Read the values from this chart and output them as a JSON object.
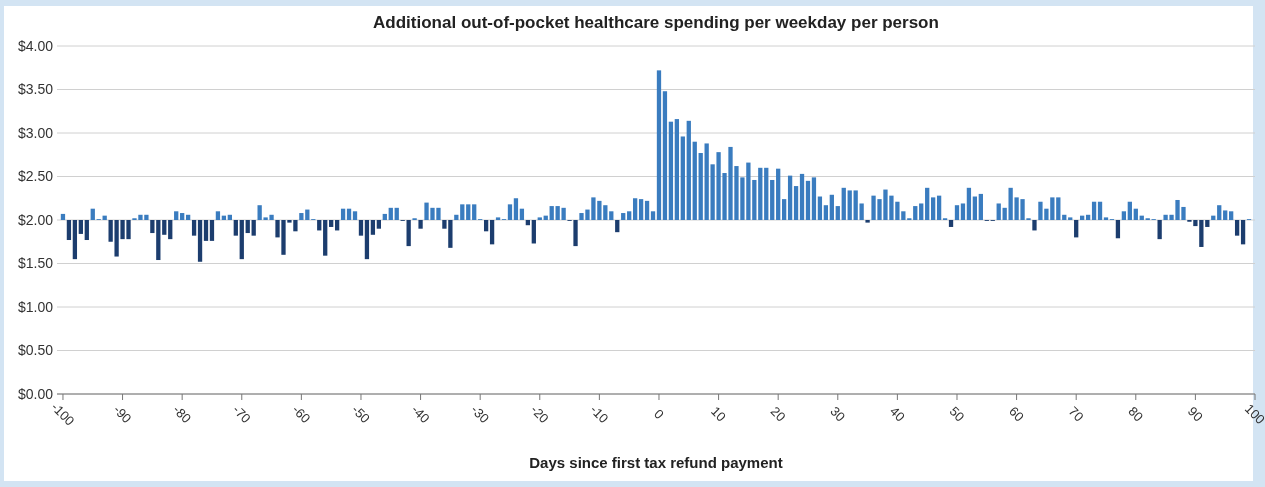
{
  "chart_data": {
    "type": "bar",
    "title": "Additional out-of-pocket healthcare spending per weekday per person",
    "xlabel": "Days since first tax refund payment",
    "x": [
      -100,
      -99,
      -98,
      -97,
      -96,
      -95,
      -94,
      -93,
      -92,
      -91,
      -90,
      -89,
      -88,
      -87,
      -86,
      -85,
      -84,
      -83,
      -82,
      -81,
      -80,
      -79,
      -78,
      -77,
      -76,
      -75,
      -74,
      -73,
      -72,
      -71,
      -70,
      -69,
      -68,
      -67,
      -66,
      -65,
      -64,
      -63,
      -62,
      -61,
      -60,
      -59,
      -58,
      -57,
      -56,
      -55,
      -54,
      -53,
      -52,
      -51,
      -50,
      -49,
      -48,
      -47,
      -46,
      -45,
      -44,
      -43,
      -42,
      -41,
      -40,
      -39,
      -38,
      -37,
      -36,
      -35,
      -34,
      -33,
      -32,
      -31,
      -30,
      -29,
      -28,
      -27,
      -26,
      -25,
      -24,
      -23,
      -22,
      -21,
      -20,
      -19,
      -18,
      -17,
      -16,
      -15,
      -14,
      -13,
      -12,
      -11,
      -10,
      -9,
      -8,
      -7,
      -6,
      -5,
      -4,
      -3,
      -2,
      -1,
      0,
      1,
      2,
      3,
      4,
      5,
      6,
      7,
      8,
      9,
      10,
      11,
      12,
      13,
      14,
      15,
      16,
      17,
      18,
      19,
      20,
      21,
      22,
      23,
      24,
      25,
      26,
      27,
      28,
      29,
      30,
      31,
      32,
      33,
      34,
      35,
      36,
      37,
      38,
      39,
      40,
      41,
      42,
      43,
      44,
      45,
      46,
      47,
      48,
      49,
      50,
      51,
      52,
      53,
      54,
      55,
      56,
      57,
      58,
      59,
      60,
      61,
      62,
      63,
      64,
      65,
      66,
      67,
      68,
      69,
      70,
      71,
      72,
      73,
      74,
      75,
      76,
      77,
      78,
      79,
      80,
      81,
      82,
      83,
      84,
      85,
      86,
      87,
      88,
      89,
      90,
      91,
      92,
      93,
      94,
      95,
      96,
      97,
      98,
      99
    ],
    "values": [
      0.07,
      -0.23,
      -0.45,
      -0.16,
      -0.23,
      0.13,
      0.01,
      0.05,
      -0.25,
      -0.42,
      -0.22,
      -0.22,
      0.02,
      0.06,
      0.06,
      -0.15,
      -0.46,
      -0.17,
      -0.22,
      0.1,
      0.08,
      0.06,
      -0.18,
      -0.48,
      -0.24,
      -0.24,
      0.1,
      0.05,
      0.06,
      -0.18,
      -0.45,
      -0.15,
      -0.18,
      0.17,
      0.03,
      0.06,
      -0.2,
      -0.4,
      -0.03,
      -0.13,
      0.08,
      0.12,
      0.01,
      -0.12,
      -0.41,
      -0.08,
      -0.12,
      0.13,
      0.13,
      0.1,
      -0.18,
      -0.45,
      -0.17,
      -0.1,
      0.07,
      0.14,
      0.14,
      -0.01,
      -0.3,
      0.02,
      -0.1,
      0.2,
      0.14,
      0.14,
      -0.1,
      -0.32,
      0.06,
      0.18,
      0.18,
      0.18,
      0.01,
      -0.13,
      -0.28,
      0.03,
      0.01,
      0.18,
      0.25,
      0.13,
      -0.06,
      -0.27,
      0.03,
      0.05,
      0.16,
      0.16,
      0.14,
      -0.01,
      -0.3,
      0.08,
      0.12,
      0.26,
      0.22,
      0.17,
      0.1,
      -0.14,
      0.08,
      0.1,
      0.25,
      0.24,
      0.22,
      0.1,
      1.72,
      1.48,
      1.13,
      1.16,
      0.96,
      1.14,
      0.9,
      0.77,
      0.88,
      0.64,
      0.78,
      0.54,
      0.84,
      0.62,
      0.49,
      0.66,
      0.46,
      0.6,
      0.6,
      0.46,
      0.59,
      0.24,
      0.51,
      0.39,
      0.53,
      0.45,
      0.49,
      0.27,
      0.17,
      0.29,
      0.16,
      0.37,
      0.34,
      0.34,
      0.19,
      -0.03,
      0.28,
      0.24,
      0.35,
      0.28,
      0.21,
      0.1,
      0.02,
      0.16,
      0.19,
      0.37,
      0.26,
      0.28,
      0.02,
      -0.08,
      0.17,
      0.19,
      0.37,
      0.27,
      0.3,
      -0.01,
      -0.01,
      0.19,
      0.14,
      0.37,
      0.26,
      0.24,
      0.02,
      -0.12,
      0.21,
      0.13,
      0.26,
      0.26,
      0.06,
      0.03,
      -0.2,
      0.05,
      0.06,
      0.21,
      0.21,
      0.03,
      0.01,
      -0.21,
      0.1,
      0.21,
      0.13,
      0.05,
      0.02,
      0.01,
      -0.22,
      0.06,
      0.06,
      0.23,
      0.15,
      -0.02,
      -0.07,
      -0.31,
      -0.08,
      0.05,
      0.17,
      0.11,
      0.1,
      -0.18,
      -0.28,
      0.01
    ],
    "base": [
      2,
      2,
      2,
      2,
      2,
      2,
      2,
      2,
      2,
      2,
      2,
      2,
      2,
      2,
      2,
      2,
      2,
      2,
      2,
      2,
      2,
      2,
      2,
      2,
      2,
      2,
      2,
      2,
      2,
      2,
      2,
      2,
      2,
      2,
      2,
      2,
      2,
      2,
      2,
      2,
      2,
      2,
      2,
      2,
      2,
      2,
      2,
      2,
      2,
      2,
      2,
      2,
      2,
      2,
      2,
      2,
      2,
      2,
      2,
      2,
      2,
      2,
      2,
      2,
      2,
      2,
      2,
      2,
      2,
      2,
      2,
      2,
      2,
      2,
      2,
      2,
      2,
      2,
      2,
      2,
      2,
      2,
      2,
      2,
      2,
      2,
      2,
      2,
      2,
      2,
      2,
      2,
      2,
      2,
      2,
      2,
      2,
      2,
      2,
      2,
      2,
      2,
      2,
      2,
      2,
      2,
      2,
      2,
      2,
      2,
      2,
      2,
      2,
      2,
      2,
      2,
      2,
      2,
      2,
      2,
      2,
      2,
      2,
      2,
      2,
      2,
      2,
      2,
      2,
      2,
      2,
      2,
      2,
      2,
      2,
      2,
      2,
      2,
      2,
      2,
      2,
      2,
      2,
      2,
      2,
      2,
      2,
      2,
      2,
      2,
      2,
      2,
      2,
      2,
      2,
      2,
      2,
      2,
      2,
      2,
      2,
      2,
      2,
      2,
      2,
      2,
      2,
      2,
      2,
      2,
      2,
      2,
      2,
      2,
      2,
      2,
      2,
      2,
      2,
      2,
      2,
      2,
      2,
      2,
      2,
      2,
      2,
      2,
      2,
      2,
      2,
      2,
      2,
      2,
      2,
      2,
      2,
      2,
      2,
      2
    ],
    "colors": [
      "#3a7cbf",
      "#1c3d6e",
      "#1c3d6e",
      "#1c3d6e",
      "#1c3d6e",
      "#3a7cbf",
      "#3a7cbf",
      "#3a7cbf",
      "#1c3d6e",
      "#1c3d6e",
      "#1c3d6e",
      "#1c3d6e",
      "#3a7cbf",
      "#3a7cbf",
      "#3a7cbf",
      "#1c3d6e",
      "#1c3d6e",
      "#1c3d6e",
      "#1c3d6e",
      "#3a7cbf",
      "#3a7cbf",
      "#3a7cbf",
      "#1c3d6e",
      "#1c3d6e",
      "#1c3d6e",
      "#1c3d6e",
      "#3a7cbf",
      "#3a7cbf",
      "#3a7cbf",
      "#1c3d6e",
      "#1c3d6e",
      "#1c3d6e",
      "#1c3d6e",
      "#3a7cbf",
      "#3a7cbf",
      "#3a7cbf",
      "#1c3d6e",
      "#1c3d6e",
      "#1c3d6e",
      "#1c3d6e",
      "#3a7cbf",
      "#3a7cbf",
      "#3a7cbf",
      "#1c3d6e",
      "#1c3d6e",
      "#1c3d6e",
      "#1c3d6e",
      "#3a7cbf",
      "#3a7cbf",
      "#3a7cbf",
      "#1c3d6e",
      "#1c3d6e",
      "#1c3d6e",
      "#1c3d6e",
      "#3a7cbf",
      "#3a7cbf",
      "#3a7cbf",
      "#1c3d6e",
      "#1c3d6e",
      "#3a7cbf",
      "#1c3d6e",
      "#3a7cbf",
      "#3a7cbf",
      "#3a7cbf",
      "#1c3d6e",
      "#1c3d6e",
      "#3a7cbf",
      "#3a7cbf",
      "#3a7cbf",
      "#3a7cbf",
      "#3a7cbf",
      "#1c3d6e",
      "#1c3d6e",
      "#3a7cbf",
      "#3a7cbf",
      "#3a7cbf",
      "#3a7cbf",
      "#3a7cbf",
      "#1c3d6e",
      "#1c3d6e",
      "#3a7cbf",
      "#3a7cbf",
      "#3a7cbf",
      "#3a7cbf",
      "#3a7cbf",
      "#1c3d6e",
      "#1c3d6e",
      "#3a7cbf",
      "#3a7cbf",
      "#3a7cbf",
      "#3a7cbf",
      "#3a7cbf",
      "#3a7cbf",
      "#1c3d6e",
      "#3a7cbf",
      "#3a7cbf",
      "#3a7cbf",
      "#3a7cbf",
      "#3a7cbf",
      "#3a7cbf",
      "#3a7cbf",
      "#3a7cbf",
      "#3a7cbf",
      "#3a7cbf",
      "#3a7cbf",
      "#3a7cbf",
      "#3a7cbf",
      "#3a7cbf",
      "#3a7cbf",
      "#3a7cbf",
      "#3a7cbf",
      "#3a7cbf",
      "#3a7cbf",
      "#3a7cbf",
      "#3a7cbf",
      "#3a7cbf",
      "#3a7cbf",
      "#3a7cbf",
      "#3a7cbf",
      "#3a7cbf",
      "#3a7cbf",
      "#3a7cbf",
      "#3a7cbf",
      "#3a7cbf",
      "#3a7cbf",
      "#3a7cbf",
      "#3a7cbf",
      "#3a7cbf",
      "#3a7cbf",
      "#3a7cbf",
      "#3a7cbf",
      "#3a7cbf",
      "#3a7cbf",
      "#3a7cbf",
      "#3a7cbf",
      "#1c3d6e",
      "#3a7cbf",
      "#3a7cbf",
      "#3a7cbf",
      "#3a7cbf",
      "#3a7cbf",
      "#3a7cbf",
      "#3a7cbf",
      "#3a7cbf",
      "#3a7cbf",
      "#3a7cbf",
      "#3a7cbf",
      "#3a7cbf",
      "#3a7cbf",
      "#1c3d6e",
      "#3a7cbf",
      "#3a7cbf",
      "#3a7cbf",
      "#3a7cbf",
      "#3a7cbf",
      "#1c3d6e",
      "#1c3d6e",
      "#3a7cbf",
      "#3a7cbf",
      "#3a7cbf",
      "#3a7cbf",
      "#3a7cbf",
      "#3a7cbf",
      "#1c3d6e",
      "#3a7cbf",
      "#3a7cbf",
      "#3a7cbf",
      "#3a7cbf",
      "#3a7cbf",
      "#3a7cbf",
      "#1c3d6e",
      "#3a7cbf",
      "#3a7cbf",
      "#3a7cbf",
      "#3a7cbf",
      "#3a7cbf",
      "#3a7cbf",
      "#1c3d6e",
      "#3a7cbf",
      "#3a7cbf",
      "#3a7cbf",
      "#3a7cbf",
      "#3a7cbf",
      "#3a7cbf",
      "#1c3d6e",
      "#3a7cbf",
      "#3a7cbf",
      "#3a7cbf",
      "#3a7cbf",
      "#1c3d6e",
      "#1c3d6e",
      "#1c3d6e",
      "#1c3d6e",
      "#3a7cbf",
      "#3a7cbf",
      "#3a7cbf",
      "#3a7cbf",
      "#1c3d6e",
      "#1c3d6e",
      "#3a7cbf"
    ],
    "xlim": [
      -101,
      100
    ],
    "xticks": [
      -100,
      -90,
      -80,
      -70,
      -60,
      -50,
      -40,
      -30,
      -20,
      -10,
      0,
      10,
      20,
      30,
      40,
      50,
      60,
      70,
      80,
      90,
      100
    ],
    "ylim": [
      0,
      4
    ],
    "yticks": [
      {
        "value": 0,
        "label": "$0.00"
      },
      {
        "value": 0.5,
        "label": "$0.50"
      },
      {
        "value": 1,
        "label": "$1.00"
      },
      {
        "value": 1.5,
        "label": "$1.50"
      },
      {
        "value": 2,
        "label": "$2.00"
      },
      {
        "value": 2.5,
        "label": "$2.50"
      },
      {
        "value": 3,
        "label": "$3.00"
      },
      {
        "value": 3.5,
        "label": "$3.50"
      },
      {
        "value": 4,
        "label": "$4.00"
      }
    ],
    "grid": "y"
  }
}
